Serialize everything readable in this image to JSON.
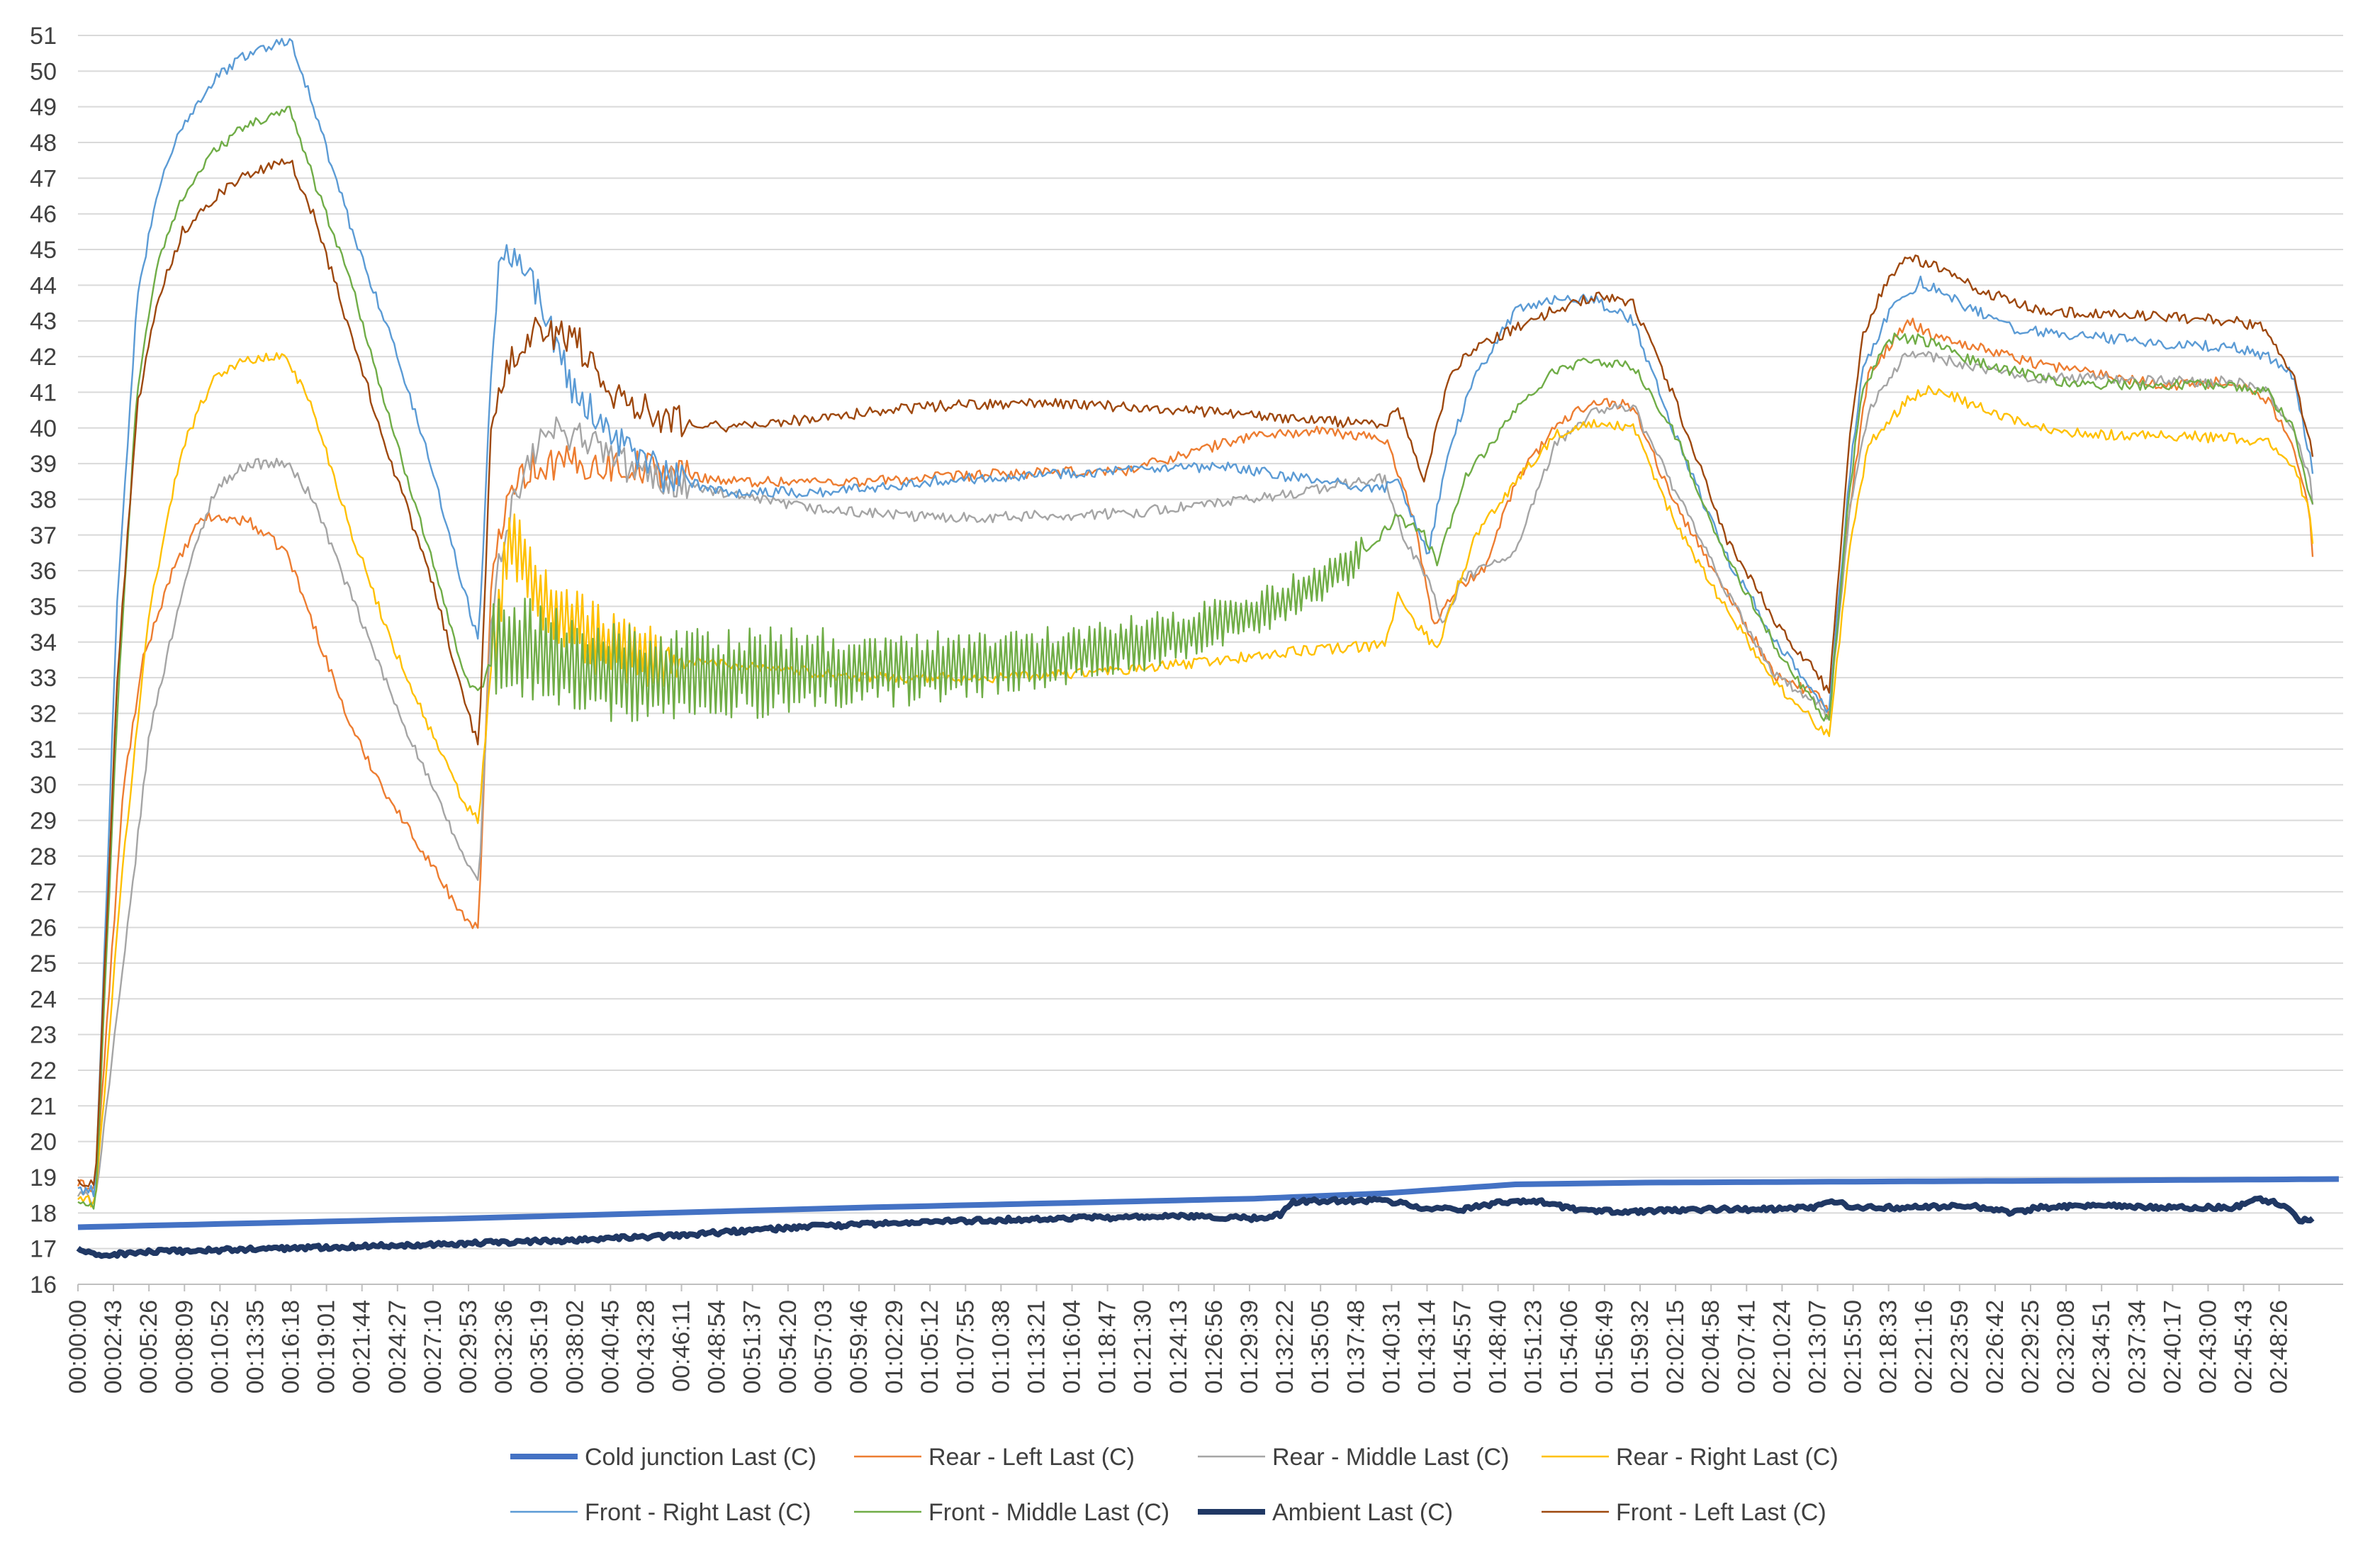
{
  "chart_data": {
    "type": "line",
    "title": "",
    "xlabel": "",
    "ylabel": "",
    "ylim": [
      16,
      51
    ],
    "y_ticks": [
      16,
      17,
      18,
      19,
      20,
      21,
      22,
      23,
      24,
      25,
      26,
      27,
      28,
      29,
      30,
      31,
      32,
      33,
      34,
      35,
      36,
      37,
      38,
      39,
      40,
      41,
      42,
      43,
      44,
      45,
      46,
      47,
      48,
      49,
      50,
      51
    ],
    "y_tick_labels": [
      "16",
      "17",
      "18",
      "19",
      "20",
      "21",
      "22",
      "23",
      "24",
      "25",
      "26",
      "27",
      "28",
      "29",
      "30",
      "31",
      "32",
      "33",
      "34",
      "35",
      "36",
      "37",
      "38",
      "39",
      "40",
      "41",
      "42",
      "43",
      "44",
      "45",
      "46",
      "47",
      "48",
      "49",
      "50",
      "51"
    ],
    "x_tick_labels": [
      "00:00:00",
      "00:02:43",
      "00:05:26",
      "00:08:09",
      "00:10:52",
      "00:13:35",
      "00:16:18",
      "00:19:01",
      "00:21:44",
      "00:24:27",
      "00:27:10",
      "00:29:53",
      "00:32:36",
      "00:35:19",
      "00:38:02",
      "00:40:45",
      "00:43:28",
      "00:46:11",
      "00:48:54",
      "00:51:37",
      "00:54:20",
      "00:57:03",
      "00:59:46",
      "01:02:29",
      "01:05:12",
      "01:07:55",
      "01:10:38",
      "01:13:21",
      "01:16:04",
      "01:18:47",
      "01:21:30",
      "01:24:13",
      "01:26:56",
      "01:29:39",
      "01:32:22",
      "01:35:05",
      "01:37:48",
      "01:40:31",
      "01:43:14",
      "01:45:57",
      "01:48:40",
      "01:51:23",
      "01:54:06",
      "01:56:49",
      "01:59:32",
      "02:02:15",
      "02:04:58",
      "02:07:41",
      "02:10:24",
      "02:13:07",
      "02:15:50",
      "02:18:33",
      "02:21:16",
      "02:23:59",
      "02:26:42",
      "02:29:25",
      "02:32:08",
      "02:34:51",
      "02:37:34",
      "02:40:17",
      "02:43:00",
      "02:45:43",
      "02:48:26"
    ],
    "x_domain_seconds": [
      0,
      10400
    ],
    "grid": true,
    "legend_position": "bottom",
    "series": [
      {
        "name": "Cold junction Last (C)",
        "color": "#4472C4",
        "weight": "thick",
        "x": [
          "00:00:00",
          "00:29:53",
          "01:00:00",
          "01:30:00",
          "01:40:00",
          "01:50:00",
          "02:00:00",
          "02:30:00",
          "02:53:20"
        ],
        "values": [
          17.6,
          17.85,
          18.15,
          18.4,
          18.55,
          18.8,
          18.85,
          18.9,
          18.95
        ]
      },
      {
        "name": "Rear - Left Last (C)",
        "color": "#ED7D31",
        "weight": "thin",
        "x": [
          "00:00:00",
          "00:01:20",
          "00:03:30",
          "00:05:00",
          "00:07:00",
          "00:09:30",
          "00:13:00",
          "00:16:00",
          "00:18:00",
          "00:21:00",
          "00:24:00",
          "00:27:00",
          "00:29:30",
          "00:30:40",
          "00:31:40",
          "00:33:00",
          "00:35:30",
          "00:38:00",
          "00:43:00",
          "00:50:00",
          "01:00:00",
          "01:10:00",
          "01:20:00",
          "01:25:00",
          "01:30:00",
          "01:35:00",
          "01:40:00",
          "01:41:20",
          "01:42:30",
          "01:43:40",
          "01:45:30",
          "01:47:30",
          "01:49:00",
          "01:50:00",
          "01:53:00",
          "01:56:00",
          "01:59:00",
          "02:02:00",
          "02:06:00",
          "02:10:00",
          "02:13:20",
          "02:14:00",
          "02:15:30",
          "02:17:00",
          "02:20:00",
          "02:22:00",
          "02:26:00",
          "02:30:00",
          "02:35:00",
          "02:40:00",
          "02:45:00",
          "02:47:30",
          "02:49:30",
          "02:50:50",
          "02:51:10"
        ],
        "values": [
          18.8,
          18.7,
          30,
          33.5,
          35.8,
          37.5,
          37.4,
          36.5,
          34.5,
          31.5,
          29.5,
          27.8,
          26.3,
          26.0,
          36,
          38.5,
          39,
          39,
          38.9,
          38.5,
          38.5,
          38.7,
          38.8,
          39.3,
          39.8,
          39.9,
          39.7,
          38.5,
          37,
          34.5,
          35.5,
          36,
          37.5,
          38.5,
          40,
          40.8,
          40.6,
          38,
          35.5,
          33,
          32.5,
          32.0,
          37.5,
          41.5,
          43.0,
          42.6,
          42.2,
          41.8,
          41.5,
          41.2,
          41.3,
          40.8,
          39.5,
          37.5,
          35.5
        ]
      },
      {
        "name": "Rear - Middle Last (C)",
        "color": "#A5A5A5",
        "weight": "thin",
        "x": [
          "00:00:00",
          "00:01:20",
          "00:03:30",
          "00:05:30",
          "00:08:00",
          "00:10:30",
          "00:13:00",
          "00:16:00",
          "00:18:00",
          "00:21:00",
          "00:24:00",
          "00:27:00",
          "00:29:30",
          "00:30:40",
          "00:31:40",
          "00:33:00",
          "00:35:30",
          "00:38:00",
          "00:43:00",
          "00:50:00",
          "00:57:00",
          "01:05:00",
          "01:10:00",
          "01:20:00",
          "01:30:00",
          "01:35:00",
          "01:40:00",
          "01:41:30",
          "01:43:00",
          "01:44:30",
          "01:46:00",
          "01:50:00",
          "01:53:00",
          "01:56:00",
          "01:59:00",
          "02:02:00",
          "02:06:00",
          "02:10:00",
          "02:13:20",
          "02:14:00",
          "02:15:30",
          "02:17:00",
          "02:20:00",
          "02:22:00",
          "02:26:00",
          "02:30:00",
          "02:35:00",
          "02:40:00",
          "02:45:00",
          "02:47:30",
          "02:49:30",
          "02:50:50",
          "02:51:10"
        ],
        "values": [
          18.5,
          18.4,
          25,
          31.5,
          35.5,
          38.3,
          39.0,
          39.0,
          38.0,
          35.2,
          32.5,
          30.0,
          28.0,
          27.2,
          35,
          37.5,
          39.8,
          39.9,
          38.7,
          38.1,
          37.7,
          37.5,
          37.5,
          37.6,
          38.0,
          38.3,
          38.6,
          36.8,
          36.0,
          34.5,
          35.8,
          36.5,
          39.5,
          40.5,
          40.6,
          38.4,
          35.5,
          33.0,
          32.2,
          31.8,
          37.5,
          40.5,
          42.1,
          42.0,
          41.6,
          41.4,
          41.4,
          41.3,
          41.3,
          41.0,
          40.0,
          38.5,
          37.0
        ]
      },
      {
        "name": "Rear - Right Last (C)",
        "color": "#FFC000",
        "weight": "thin",
        "x": [
          "00:00:00",
          "00:01:20",
          "00:03:30",
          "00:05:30",
          "00:08:00",
          "00:10:30",
          "00:13:00",
          "00:16:00",
          "00:18:00",
          "00:21:00",
          "00:24:00",
          "00:27:00",
          "00:29:30",
          "00:30:40",
          "00:31:40",
          "00:33:00",
          "00:36:00",
          "00:40:00",
          "00:45:00",
          "00:53:00",
          "01:00:00",
          "01:10:00",
          "01:20:00",
          "01:25:00",
          "01:30:00",
          "01:35:00",
          "01:40:00",
          "01:41:00",
          "01:42:30",
          "01:44:00",
          "01:45:30",
          "01:47:00",
          "01:50:00",
          "01:53:00",
          "01:56:00",
          "01:59:00",
          "02:02:00",
          "02:06:00",
          "02:10:00",
          "02:13:20",
          "02:14:00",
          "02:15:30",
          "02:17:00",
          "02:20:00",
          "02:22:00",
          "02:26:00",
          "02:30:00",
          "02:35:00",
          "02:40:00",
          "02:45:00",
          "02:47:30",
          "02:49:30",
          "02:50:50",
          "02:51:10"
        ],
        "values": [
          18.4,
          18.3,
          28,
          35,
          39.5,
          41.5,
          41.9,
          42.0,
          40.5,
          37.0,
          34.0,
          31.5,
          29.5,
          29.0,
          33.5,
          37.0,
          35.0,
          34.0,
          33.5,
          33.3,
          33.0,
          33.0,
          33.2,
          33.4,
          33.6,
          33.8,
          33.9,
          35.3,
          34.5,
          33.8,
          35.5,
          37.0,
          38.5,
          39.8,
          40.1,
          40.0,
          37.5,
          35.0,
          32.8,
          31.6,
          31.4,
          36.5,
          39.5,
          40.8,
          41.1,
          40.5,
          40.0,
          39.8,
          39.8,
          39.7,
          39.6,
          39.0,
          37.5,
          36.0
        ]
      },
      {
        "name": "Front - Right Last (C)",
        "color": "#5B9BD5",
        "weight": "thin",
        "x": [
          "00:00:00",
          "00:01:20",
          "00:03:00",
          "00:04:30",
          "00:06:00",
          "00:08:00",
          "00:10:30",
          "00:13:00",
          "00:15:30",
          "00:16:20",
          "00:18:00",
          "00:21:00",
          "00:24:00",
          "00:27:00",
          "00:29:30",
          "00:30:40",
          "00:31:40",
          "00:32:20",
          "00:34:00",
          "00:36:00",
          "00:38:00",
          "00:41:00",
          "00:45:00",
          "00:50:00",
          "00:57:00",
          "01:05:00",
          "01:13:00",
          "01:20:00",
          "01:28:00",
          "01:35:00",
          "01:40:00",
          "01:41:00",
          "01:43:20",
          "01:45:00",
          "01:47:00",
          "01:50:00",
          "01:53:00",
          "01:56:00",
          "01:59:00",
          "02:02:00",
          "02:06:00",
          "02:10:00",
          "02:13:20",
          "02:14:00",
          "02:15:30",
          "02:16:30",
          "02:18:30",
          "02:21:00",
          "02:24:00",
          "02:28:00",
          "02:32:00",
          "02:36:00",
          "02:40:00",
          "02:45:00",
          "02:47:30",
          "02:49:30",
          "02:51:10"
        ],
        "values": [
          18.7,
          18.6,
          35,
          43.5,
          46.5,
          48.5,
          49.8,
          50.5,
          50.8,
          50.9,
          49.0,
          45.5,
          42.5,
          39.0,
          35.5,
          34.0,
          42.0,
          45.2,
          44.8,
          43.0,
          41.0,
          39.8,
          38.6,
          38.2,
          38.2,
          38.5,
          38.7,
          38.8,
          38.9,
          38.5,
          38.3,
          38.5,
          36.5,
          39.5,
          41.5,
          43.3,
          43.6,
          43.6,
          43.0,
          40.0,
          36.5,
          34.0,
          32.3,
          32.0,
          38.5,
          41.5,
          43.2,
          44.1,
          43.5,
          42.8,
          42.6,
          42.5,
          42.3,
          42.3,
          42.0,
          41.5,
          38.5
        ]
      },
      {
        "name": "Front - Middle Last (C)",
        "color": "#70AD47",
        "weight": "thin",
        "x": [
          "00:00:00",
          "00:01:20",
          "00:03:00",
          "00:04:30",
          "00:06:00",
          "00:08:00",
          "00:10:30",
          "00:13:00",
          "00:15:30",
          "00:16:20",
          "00:18:00",
          "00:21:00",
          "00:24:00",
          "00:27:00",
          "00:29:30",
          "00:30:40",
          "00:31:40",
          "00:33:00",
          "00:38:00",
          "00:45:00",
          "00:55:00",
          "01:05:00",
          "01:15:00",
          "01:22:00",
          "01:30:00",
          "01:37:00",
          "01:41:00",
          "01:43:00",
          "01:44:00",
          "01:46:00",
          "01:50:00",
          "01:53:00",
          "01:56:00",
          "01:59:00",
          "02:02:00",
          "02:06:00",
          "02:10:00",
          "02:13:20",
          "02:14:00",
          "02:15:30",
          "02:16:30",
          "02:18:30",
          "02:21:00",
          "02:24:00",
          "02:28:00",
          "02:32:00",
          "02:36:00",
          "02:40:00",
          "02:45:00",
          "02:47:30",
          "02:49:30",
          "02:51:10"
        ],
        "values": [
          18.3,
          18.1,
          32,
          41,
          44.5,
          46.5,
          47.8,
          48.5,
          48.8,
          48.9,
          47.0,
          44.0,
          40.0,
          36.5,
          33.0,
          32.5,
          33.5,
          34.0,
          33.2,
          33.0,
          33.2,
          33.3,
          33.6,
          34.0,
          34.8,
          36.0,
          37.5,
          37.0,
          36.2,
          38.5,
          40.5,
          41.6,
          41.9,
          41.7,
          40.0,
          36.5,
          33.8,
          32.0,
          31.8,
          38.0,
          41.0,
          42.5,
          42.5,
          42.0,
          41.6,
          41.3,
          41.2,
          41.2,
          41.2,
          41.0,
          40.0,
          37.5
        ]
      },
      {
        "name": "Ambient Last (C)",
        "color": "#203864",
        "weight": "thick",
        "x": [
          "00:00:00",
          "00:01:20",
          "00:05:00",
          "00:15:00",
          "00:25:00",
          "00:35:00",
          "00:45:00",
          "00:55:00",
          "01:05:00",
          "01:15:00",
          "01:25:00",
          "01:30:00",
          "01:32:00",
          "01:33:00",
          "01:36:00",
          "01:40:00",
          "01:43:00",
          "01:46:00",
          "01:49:00",
          "01:52:00",
          "01:55:00",
          "02:00:00",
          "02:05:00",
          "02:10:00",
          "02:13:00",
          "02:14:00",
          "02:16:00",
          "02:20:00",
          "02:25:00",
          "02:28:00",
          "02:30:00",
          "02:35:00",
          "02:40:00",
          "02:45:00",
          "02:47:00",
          "02:49:00",
          "02:50:00",
          "02:51:10"
        ],
        "values": [
          17.0,
          16.8,
          16.9,
          17.0,
          17.1,
          17.2,
          17.35,
          17.6,
          17.75,
          17.85,
          17.9,
          17.85,
          17.95,
          18.3,
          18.35,
          18.35,
          18.15,
          18.1,
          18.3,
          18.3,
          18.05,
          18.05,
          18.1,
          18.1,
          18.15,
          18.35,
          18.15,
          18.15,
          18.2,
          18.0,
          18.15,
          18.2,
          18.15,
          18.15,
          18.4,
          18.2,
          17.75,
          17.85
        ]
      },
      {
        "name": "Front - Left Last (C)",
        "color": "#9E480E",
        "weight": "thin",
        "x": [
          "00:00:00",
          "00:01:20",
          "00:03:00",
          "00:04:30",
          "00:06:00",
          "00:08:00",
          "00:10:30",
          "00:13:00",
          "00:15:30",
          "00:16:20",
          "00:18:00",
          "00:21:00",
          "00:24:00",
          "00:27:00",
          "00:29:30",
          "00:30:40",
          "00:31:40",
          "00:33:00",
          "00:35:30",
          "00:38:00",
          "00:41:00",
          "00:45:00",
          "00:50:00",
          "00:57:00",
          "01:05:00",
          "01:13:00",
          "01:20:00",
          "01:28:00",
          "01:35:00",
          "01:40:00",
          "01:41:00",
          "01:43:00",
          "01:45:00",
          "01:47:00",
          "01:50:00",
          "01:53:00",
          "01:56:00",
          "01:59:00",
          "02:02:00",
          "02:06:00",
          "02:10:00",
          "02:13:20",
          "02:14:00",
          "02:15:30",
          "02:16:30",
          "02:18:30",
          "02:20:00",
          "02:23:00",
          "02:26:00",
          "02:30:00",
          "02:35:00",
          "02:40:00",
          "02:45:00",
          "02:47:30",
          "02:49:30",
          "02:51:10"
        ],
        "values": [
          18.9,
          18.8,
          33,
          40.5,
          43.5,
          45.5,
          46.5,
          47.1,
          47.4,
          47.4,
          46.0,
          42.5,
          39.0,
          35.8,
          32.5,
          31.0,
          40.5,
          42.0,
          42.8,
          42.5,
          41.0,
          40.3,
          40.0,
          40.3,
          40.6,
          40.7,
          40.6,
          40.4,
          40.2,
          40.1,
          40.6,
          38.5,
          41.5,
          42.3,
          42.8,
          43.3,
          43.7,
          43.5,
          41.0,
          37.0,
          34.5,
          33.0,
          32.5,
          39.5,
          42.5,
          44.2,
          44.8,
          44.4,
          43.8,
          43.3,
          43.2,
          43.1,
          43.0,
          42.8,
          41.5,
          39.0
        ]
      }
    ]
  }
}
